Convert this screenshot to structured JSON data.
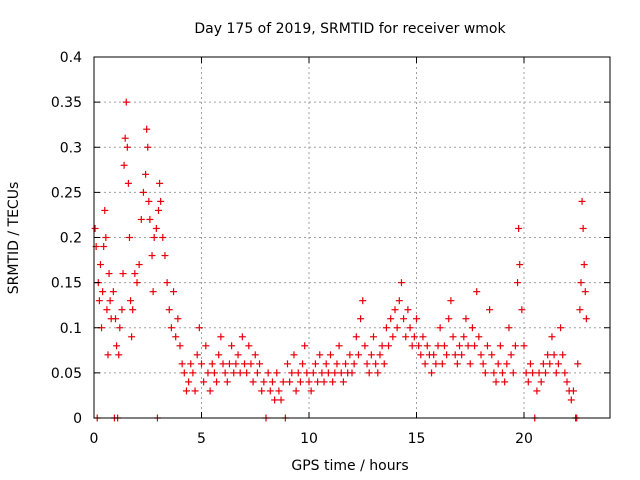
{
  "chart_data": {
    "type": "scatter",
    "title": "Day 175 of 2019, SRMTID for receiver wmok",
    "xlabel": "GPS time / hours",
    "ylabel": "SRMTID / TECUs",
    "xlim": [
      0,
      24
    ],
    "ylim": [
      0,
      0.4
    ],
    "grid": true,
    "marker": "+",
    "xticks": [
      0,
      5,
      10,
      15,
      20
    ],
    "xtick_labels": [
      "0",
      "5",
      "10",
      "15",
      "20"
    ],
    "yticks": [
      0,
      0.05,
      0.1,
      0.15,
      0.2,
      0.25,
      0.3,
      0.35,
      0.4
    ],
    "ytick_labels": [
      "0",
      "0.05",
      "0.1",
      "0.15",
      "0.2",
      "0.25",
      "0.3",
      "0.35",
      "0.4"
    ],
    "series": [
      {
        "name": "SRMTID",
        "color": "#e8000b",
        "points": [
          [
            0.05,
            0.21
          ],
          [
            0.1,
            0.19
          ],
          [
            0.15,
            0.0
          ],
          [
            0.2,
            0.15
          ],
          [
            0.25,
            0.13
          ],
          [
            0.3,
            0.17
          ],
          [
            0.35,
            0.1
          ],
          [
            0.4,
            0.14
          ],
          [
            0.45,
            0.19
          ],
          [
            0.5,
            0.23
          ],
          [
            0.55,
            0.2
          ],
          [
            0.6,
            0.12
          ],
          [
            0.65,
            0.07
          ],
          [
            0.7,
            0.16
          ],
          [
            0.75,
            0.13
          ],
          [
            0.8,
            0.11
          ],
          [
            0.9,
            0.14
          ],
          [
            0.95,
            0.0
          ],
          [
            1.0,
            0.11
          ],
          [
            1.05,
            0.08
          ],
          [
            1.1,
            0.0
          ],
          [
            1.15,
            0.07
          ],
          [
            1.2,
            0.1
          ],
          [
            1.3,
            0.12
          ],
          [
            1.35,
            0.16
          ],
          [
            1.4,
            0.28
          ],
          [
            1.45,
            0.31
          ],
          [
            1.5,
            0.35
          ],
          [
            1.55,
            0.3
          ],
          [
            1.6,
            0.26
          ],
          [
            1.65,
            0.2
          ],
          [
            1.7,
            0.13
          ],
          [
            1.75,
            0.09
          ],
          [
            1.8,
            0.12
          ],
          [
            1.9,
            0.16
          ],
          [
            2.0,
            0.15
          ],
          [
            2.1,
            0.17
          ],
          [
            2.2,
            0.22
          ],
          [
            2.3,
            0.25
          ],
          [
            2.4,
            0.27
          ],
          [
            2.45,
            0.32
          ],
          [
            2.5,
            0.3
          ],
          [
            2.55,
            0.24
          ],
          [
            2.6,
            0.22
          ],
          [
            2.7,
            0.18
          ],
          [
            2.75,
            0.14
          ],
          [
            2.8,
            0.2
          ],
          [
            2.9,
            0.21
          ],
          [
            2.95,
            0.0
          ],
          [
            3.0,
            0.23
          ],
          [
            3.05,
            0.26
          ],
          [
            3.1,
            0.24
          ],
          [
            3.2,
            0.2
          ],
          [
            3.3,
            0.18
          ],
          [
            3.4,
            0.15
          ],
          [
            3.5,
            0.12
          ],
          [
            3.6,
            0.1
          ],
          [
            3.7,
            0.14
          ],
          [
            3.8,
            0.09
          ],
          [
            3.9,
            0.11
          ],
          [
            4.0,
            0.08
          ],
          [
            4.1,
            0.06
          ],
          [
            4.2,
            0.05
          ],
          [
            4.3,
            0.03
          ],
          [
            4.4,
            0.04
          ],
          [
            4.5,
            0.06
          ],
          [
            4.6,
            0.05
          ],
          [
            4.7,
            0.03
          ],
          [
            4.8,
            0.07
          ],
          [
            4.9,
            0.1
          ],
          [
            5.0,
            0.06
          ],
          [
            5.1,
            0.04
          ],
          [
            5.2,
            0.08
          ],
          [
            5.3,
            0.05
          ],
          [
            5.4,
            0.03
          ],
          [
            5.5,
            0.06
          ],
          [
            5.6,
            0.05
          ],
          [
            5.7,
            0.04
          ],
          [
            5.8,
            0.07
          ],
          [
            5.9,
            0.09
          ],
          [
            6.0,
            0.06
          ],
          [
            6.1,
            0.05
          ],
          [
            6.2,
            0.04
          ],
          [
            6.3,
            0.06
          ],
          [
            6.4,
            0.08
          ],
          [
            6.5,
            0.05
          ],
          [
            6.6,
            0.06
          ],
          [
            6.7,
            0.07
          ],
          [
            6.8,
            0.05
          ],
          [
            6.9,
            0.09
          ],
          [
            7.0,
            0.06
          ],
          [
            7.1,
            0.05
          ],
          [
            7.2,
            0.08
          ],
          [
            7.3,
            0.06
          ],
          [
            7.4,
            0.04
          ],
          [
            7.5,
            0.07
          ],
          [
            7.6,
            0.05
          ],
          [
            7.7,
            0.06
          ],
          [
            7.8,
            0.03
          ],
          [
            7.9,
            0.04
          ],
          [
            8.0,
            0.0
          ],
          [
            8.1,
            0.05
          ],
          [
            8.2,
            0.03
          ],
          [
            8.3,
            0.04
          ],
          [
            8.4,
            0.02
          ],
          [
            8.5,
            0.05
          ],
          [
            8.6,
            0.03
          ],
          [
            8.7,
            0.02
          ],
          [
            8.8,
            0.04
          ],
          [
            8.9,
            0.0
          ],
          [
            9.0,
            0.06
          ],
          [
            9.1,
            0.04
          ],
          [
            9.2,
            0.05
          ],
          [
            9.3,
            0.07
          ],
          [
            9.4,
            0.03
          ],
          [
            9.5,
            0.05
          ],
          [
            9.6,
            0.04
          ],
          [
            9.7,
            0.06
          ],
          [
            9.8,
            0.08
          ],
          [
            9.9,
            0.05
          ],
          [
            10.0,
            0.04
          ],
          [
            10.1,
            0.03
          ],
          [
            10.2,
            0.05
          ],
          [
            10.3,
            0.06
          ],
          [
            10.4,
            0.04
          ],
          [
            10.5,
            0.07
          ],
          [
            10.6,
            0.05
          ],
          [
            10.7,
            0.04
          ],
          [
            10.8,
            0.06
          ],
          [
            10.9,
            0.05
          ],
          [
            11.0,
            0.07
          ],
          [
            11.1,
            0.04
          ],
          [
            11.2,
            0.05
          ],
          [
            11.3,
            0.06
          ],
          [
            11.4,
            0.08
          ],
          [
            11.5,
            0.05
          ],
          [
            11.6,
            0.04
          ],
          [
            11.7,
            0.06
          ],
          [
            11.8,
            0.05
          ],
          [
            11.9,
            0.07
          ],
          [
            12.0,
            0.05
          ],
          [
            12.1,
            0.06
          ],
          [
            12.2,
            0.09
          ],
          [
            12.3,
            0.07
          ],
          [
            12.4,
            0.11
          ],
          [
            12.5,
            0.13
          ],
          [
            12.6,
            0.08
          ],
          [
            12.7,
            0.06
          ],
          [
            12.8,
            0.05
          ],
          [
            12.9,
            0.07
          ],
          [
            13.0,
            0.09
          ],
          [
            13.1,
            0.06
          ],
          [
            13.2,
            0.05
          ],
          [
            13.3,
            0.07
          ],
          [
            13.4,
            0.08
          ],
          [
            13.5,
            0.06
          ],
          [
            13.6,
            0.1
          ],
          [
            13.7,
            0.08
          ],
          [
            13.8,
            0.11
          ],
          [
            13.9,
            0.09
          ],
          [
            14.0,
            0.12
          ],
          [
            14.1,
            0.1
          ],
          [
            14.2,
            0.13
          ],
          [
            14.3,
            0.15
          ],
          [
            14.4,
            0.11
          ],
          [
            14.5,
            0.09
          ],
          [
            14.6,
            0.12
          ],
          [
            14.7,
            0.1
          ],
          [
            14.8,
            0.08
          ],
          [
            14.9,
            0.09
          ],
          [
            15.0,
            0.11
          ],
          [
            15.1,
            0.08
          ],
          [
            15.2,
            0.07
          ],
          [
            15.3,
            0.09
          ],
          [
            15.4,
            0.06
          ],
          [
            15.5,
            0.08
          ],
          [
            15.6,
            0.07
          ],
          [
            15.7,
            0.05
          ],
          [
            15.8,
            0.07
          ],
          [
            15.9,
            0.06
          ],
          [
            16.0,
            0.08
          ],
          [
            16.1,
            0.1
          ],
          [
            16.2,
            0.06
          ],
          [
            16.3,
            0.08
          ],
          [
            16.4,
            0.07
          ],
          [
            16.5,
            0.11
          ],
          [
            16.6,
            0.13
          ],
          [
            16.7,
            0.09
          ],
          [
            16.8,
            0.07
          ],
          [
            16.9,
            0.06
          ],
          [
            17.0,
            0.08
          ],
          [
            17.1,
            0.07
          ],
          [
            17.2,
            0.09
          ],
          [
            17.3,
            0.11
          ],
          [
            17.4,
            0.08
          ],
          [
            17.5,
            0.06
          ],
          [
            17.6,
            0.1
          ],
          [
            17.7,
            0.08
          ],
          [
            17.8,
            0.14
          ],
          [
            17.9,
            0.09
          ],
          [
            18.0,
            0.07
          ],
          [
            18.1,
            0.06
          ],
          [
            18.2,
            0.05
          ],
          [
            18.3,
            0.08
          ],
          [
            18.4,
            0.12
          ],
          [
            18.5,
            0.07
          ],
          [
            18.6,
            0.05
          ],
          [
            18.7,
            0.04
          ],
          [
            18.8,
            0.06
          ],
          [
            18.9,
            0.08
          ],
          [
            19.0,
            0.05
          ],
          [
            19.1,
            0.04
          ],
          [
            19.2,
            0.06
          ],
          [
            19.3,
            0.1
          ],
          [
            19.4,
            0.07
          ],
          [
            19.5,
            0.05
          ],
          [
            19.6,
            0.08
          ],
          [
            19.7,
            0.15
          ],
          [
            19.75,
            0.21
          ],
          [
            19.8,
            0.17
          ],
          [
            19.9,
            0.12
          ],
          [
            20.0,
            0.08
          ],
          [
            20.1,
            0.05
          ],
          [
            20.2,
            0.04
          ],
          [
            20.3,
            0.06
          ],
          [
            20.4,
            0.05
          ],
          [
            20.5,
            0.0
          ],
          [
            20.6,
            0.03
          ],
          [
            20.7,
            0.05
          ],
          [
            20.8,
            0.04
          ],
          [
            20.9,
            0.06
          ],
          [
            21.0,
            0.05
          ],
          [
            21.1,
            0.07
          ],
          [
            21.2,
            0.06
          ],
          [
            21.3,
            0.09
          ],
          [
            21.4,
            0.07
          ],
          [
            21.5,
            0.05
          ],
          [
            21.6,
            0.06
          ],
          [
            21.7,
            0.1
          ],
          [
            21.8,
            0.07
          ],
          [
            21.9,
            0.05
          ],
          [
            22.0,
            0.04
          ],
          [
            22.1,
            0.03
          ],
          [
            22.2,
            0.02
          ],
          [
            22.3,
            0.03
          ],
          [
            22.4,
            0.0
          ],
          [
            22.45,
            0.0
          ],
          [
            22.5,
            0.06
          ],
          [
            22.6,
            0.12
          ],
          [
            22.65,
            0.15
          ],
          [
            22.7,
            0.24
          ],
          [
            22.75,
            0.21
          ],
          [
            22.8,
            0.17
          ],
          [
            22.85,
            0.14
          ],
          [
            22.9,
            0.11
          ]
        ]
      }
    ]
  }
}
